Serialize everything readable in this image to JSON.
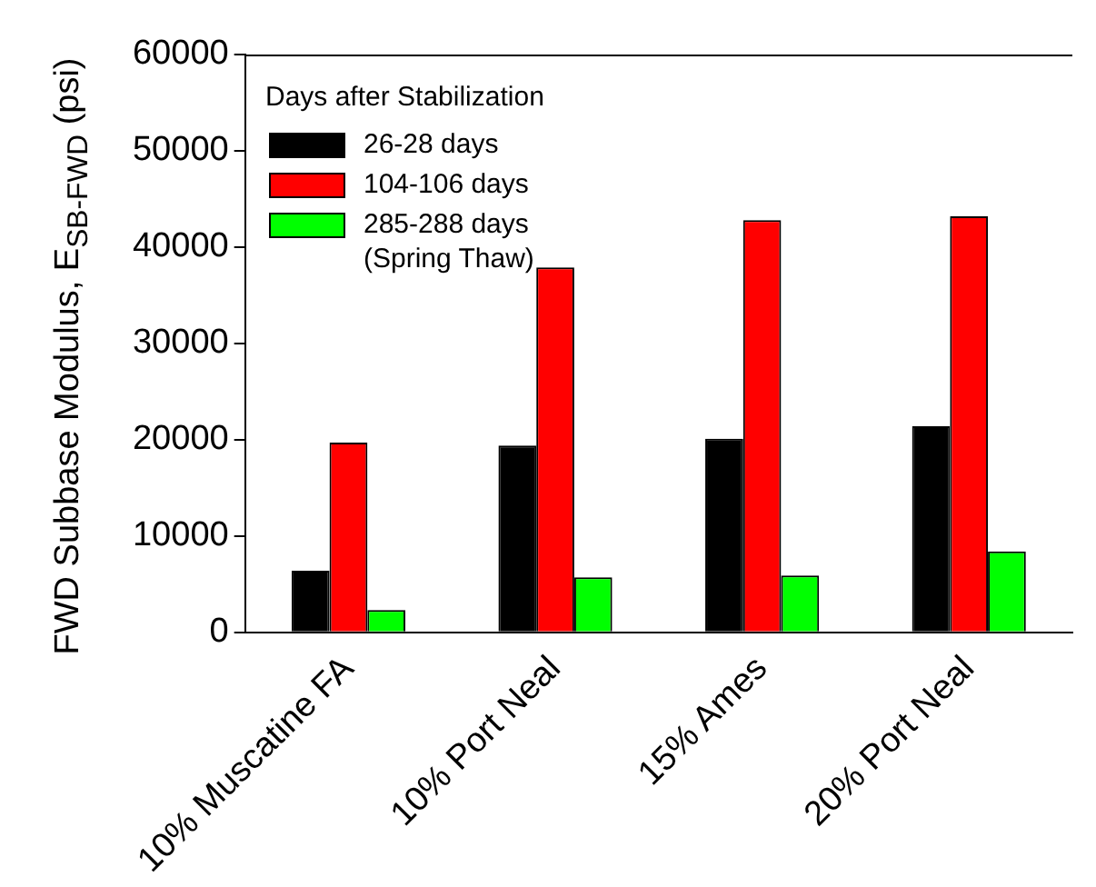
{
  "chart_data": {
    "type": "bar",
    "ylabel": "FWD Subbase Modulus, E$_{SB-FWD}$ (psi)",
    "legend_title": "Days after Stabilization",
    "legend": "top left",
    "categories": [
      "10% Muscatine FA",
      "10% Port Neal",
      "15% Ames",
      "20% Port Neal"
    ],
    "series": [
      {
        "name": "26-28 days",
        "color": "#000000",
        "values": [
          6400,
          19400,
          20100,
          21400
        ]
      },
      {
        "name": "104-106 days",
        "color": "#ff0000",
        "values": [
          19700,
          37900,
          42800,
          43200
        ]
      },
      {
        "name": "285-288 days (Spring Thaw)",
        "color": "#00ff00",
        "values": [
          2300,
          5700,
          5900,
          8400
        ]
      }
    ],
    "ylim": [
      0,
      60000
    ],
    "yticks": [
      0,
      10000,
      20000,
      30000,
      40000,
      50000,
      60000
    ],
    "grid": false
  }
}
